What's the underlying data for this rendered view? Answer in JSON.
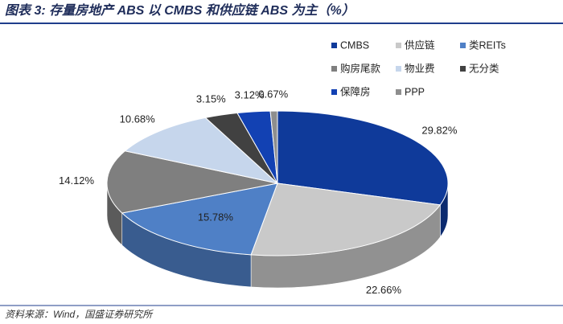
{
  "chart_data": {
    "type": "pie3d",
    "title": "图表 3: 存量房地产 ABS 以 CMBS 和供应链 ABS 为主（%）",
    "source": "资料来源：Wind，国盛证券研究所",
    "categories": [
      "CMBS",
      "供应链",
      "类REITs",
      "购房尾款",
      "物业费",
      "无分类",
      "保障房",
      "PPP"
    ],
    "values": [
      29.82,
      22.66,
      15.78,
      14.12,
      10.68,
      3.15,
      3.12,
      0.67
    ],
    "value_labels": [
      "29.82%",
      "22.66%",
      "15.78%",
      "14.12%",
      "10.68%",
      "3.15%",
      "3.12%",
      "0.67%"
    ],
    "colors": [
      "#0f3a9a",
      "#c9c9c9",
      "#4f80c6",
      "#7f7f7f",
      "#c6d6ec",
      "#414141",
      "#1241b3",
      "#8e8e8e"
    ],
    "legend": "top-right"
  }
}
